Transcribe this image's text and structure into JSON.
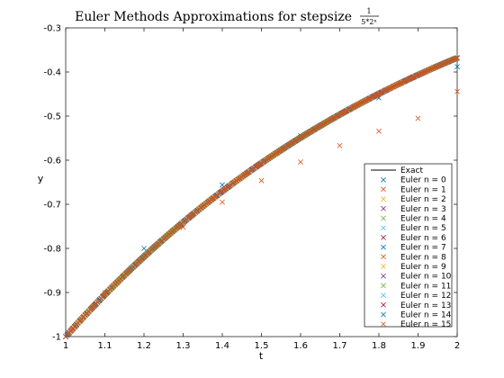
{
  "chart_data": {
    "type": "scatter",
    "title": "Euler Methods Approximations for stepsize",
    "title_fraction": {
      "numerator": "1",
      "denominator": "5*2ⁿ"
    },
    "xlabel": "t",
    "ylabel": "y",
    "xlim": [
      1,
      2
    ],
    "ylim": [
      -1,
      -0.3
    ],
    "xticks": [
      "1",
      "1.1",
      "1.2",
      "1.3",
      "1.4",
      "1.5",
      "1.6",
      "1.7",
      "1.8",
      "1.9",
      "2"
    ],
    "yticks": [
      "-0.3",
      "-0.4",
      "-0.5",
      "-0.6",
      "-0.7",
      "-0.8",
      "-0.9",
      "-1"
    ],
    "grid": false,
    "legend_position": "bottom-right",
    "exact": {
      "name": "Exact",
      "color": "#000000",
      "x": [
        1,
        1.05,
        1.1,
        1.15,
        1.2,
        1.25,
        1.3,
        1.35,
        1.4,
        1.45,
        1.5,
        1.55,
        1.6,
        1.65,
        1.7,
        1.75,
        1.8,
        1.85,
        1.9,
        1.95,
        2
      ],
      "y": [
        -1.0,
        -0.9512,
        -0.9048,
        -0.8607,
        -0.8187,
        -0.7788,
        -0.7408,
        -0.7047,
        -0.6703,
        -0.6376,
        -0.6065,
        -0.5769,
        -0.5488,
        -0.522,
        -0.4966,
        -0.4724,
        -0.4493,
        -0.4274,
        -0.4066,
        -0.3867,
        -0.3679
      ]
    },
    "series": [
      {
        "name": "Euler n = 0",
        "color": "#0072BD",
        "x": [
          1,
          1.2,
          1.4,
          1.6,
          1.8,
          2
        ],
        "y": [
          -1,
          -0.8,
          -0.656,
          -0.5443,
          -0.4587,
          -0.388
        ]
      },
      {
        "name": "Euler n = 1",
        "color": "#D95319",
        "x": [
          1,
          1.1,
          1.2,
          1.3,
          1.4,
          1.5,
          1.6,
          1.7,
          1.8,
          1.9,
          2
        ],
        "y": [
          -1,
          -0.9,
          -0.819,
          -0.7519,
          -0.6951,
          -0.6463,
          -0.604,
          -0.5669,
          -0.5342,
          -0.5052,
          -0.4442
        ]
      },
      {
        "name": "Euler n = 2",
        "color": "#EDB120"
      },
      {
        "name": "Euler n = 3",
        "color": "#7E2F8E"
      },
      {
        "name": "Euler n = 4",
        "color": "#77AC30"
      },
      {
        "name": "Euler n = 5",
        "color": "#4DBEEE"
      },
      {
        "name": "Euler n = 6",
        "color": "#A2142F"
      },
      {
        "name": "Euler n = 7",
        "color": "#0072BD"
      },
      {
        "name": "Euler n = 8",
        "color": "#D95319"
      },
      {
        "name": "Euler n = 9",
        "color": "#EDB120"
      },
      {
        "name": "Euler n = 10",
        "color": "#7E2F8E"
      },
      {
        "name": "Euler n = 11",
        "color": "#77AC30"
      },
      {
        "name": "Euler n = 12",
        "color": "#4DBEEE"
      },
      {
        "name": "Euler n = 13",
        "color": "#A2142F"
      },
      {
        "name": "Euler n = 14",
        "color": "#0072BD"
      },
      {
        "name": "Euler n = 15",
        "color": "#D95319"
      }
    ]
  }
}
